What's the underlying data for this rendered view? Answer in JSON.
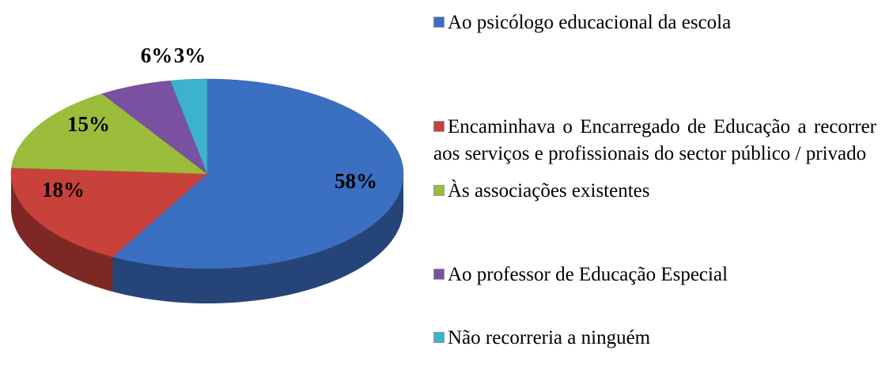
{
  "chart_data": {
    "type": "pie",
    "categories": [
      "Ao psicólogo educacional da escola",
      "Encaminhava o Encarregado de Educação a recorrer aos serviços e profissionais do sector público / privado",
      "Às associações existentes",
      "Ao professor de Educação Especial",
      "Não recorreria a ninguém"
    ],
    "values": [
      58,
      18,
      15,
      6,
      3
    ],
    "value_labels": [
      "58%",
      "18%",
      "15%",
      "6%",
      "3%"
    ],
    "colors": [
      "#3b6fc1",
      "#c9413b",
      "#9cbc3b",
      "#7a50a1",
      "#3cb2cd"
    ],
    "legend": "right"
  }
}
